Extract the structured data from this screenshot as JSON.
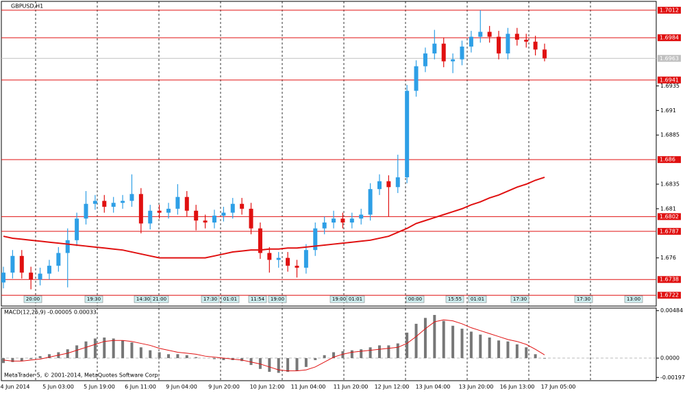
{
  "chart_data": {
    "type": "candlestick",
    "title": "GBPUSD,H1",
    "footer": "MetaTrader 5, © 2001-2014, MetaQuotes Software Corp.",
    "bull_color": "#2e9fe6",
    "bear_color": "#e01010",
    "ma_color": "#e01010",
    "level_color": "#e01010",
    "ylim": [
      1.6711,
      1.7021
    ],
    "yticks": [
      1.6935,
      1.691,
      1.6885,
      1.6835,
      1.681,
      1.676
    ],
    "levels": [
      1.7012,
      1.6984,
      1.6941,
      1.686,
      1.6802,
      1.6787,
      1.6738,
      1.6722
    ],
    "current_price": 1.6963,
    "xlabels": [
      "4 Jun 2014",
      "5 Jun 03:00",
      "5 Jun 19:00",
      "6 Jun 11:00",
      "9 Jun 04:00",
      "9 Jun 20:00",
      "10 Jun 12:00",
      "11 Jun 04:00",
      "11 Jun 20:00",
      "12 Jun 12:00",
      "13 Jun 04:00",
      "13 Jun 20:00",
      "16 Jun 13:00",
      "17 Jun 05:00"
    ],
    "events": [
      "20:00",
      "19:30",
      "14:30",
      "21:00",
      "17:30",
      "01:01",
      "11:54",
      "19:00",
      "19:00",
      "01:01",
      "00:00",
      "15:55",
      "01:01",
      "17:30",
      "17:30",
      "13:00"
    ],
    "open": [
      1.6735,
      1.6745,
      1.6762,
      1.6745,
      1.6738,
      1.6744,
      1.6752,
      1.6765,
      1.6778,
      1.68,
      1.6815,
      1.6818,
      1.6812,
      1.6816,
      1.6818,
      1.6825,
      1.6795,
      1.6808,
      1.6806,
      1.681,
      1.6822,
      1.6808,
      1.6798,
      1.6796,
      1.6803,
      1.6806,
      1.6815,
      1.681,
      1.679,
      1.6765,
      1.6758,
      1.676,
      1.6752,
      1.675,
      1.6768,
      1.679,
      1.6796,
      1.68,
      1.6796,
      1.68,
      1.6804,
      1.683,
      1.6838,
      1.6832,
      1.6842,
      1.693,
      1.6955,
      1.6968,
      1.6978,
      1.696,
      1.6962,
      1.6975,
      1.6985,
      1.699,
      1.6985,
      1.6968,
      1.6988,
      1.6982,
      1.698,
      1.6972
    ],
    "high": [
      1.6751,
      1.6768,
      1.6768,
      1.6751,
      1.675,
      1.6758,
      1.6771,
      1.679,
      1.6806,
      1.6828,
      1.6824,
      1.6824,
      1.6822,
      1.6824,
      1.6845,
      1.6831,
      1.6814,
      1.6814,
      1.6816,
      1.6835,
      1.6828,
      1.6814,
      1.6804,
      1.6809,
      1.6812,
      1.6821,
      1.6821,
      1.6816,
      1.6796,
      1.6771,
      1.6766,
      1.6766,
      1.6758,
      1.6774,
      1.6796,
      1.6802,
      1.6808,
      1.6806,
      1.6806,
      1.681,
      1.6836,
      1.6845,
      1.6844,
      1.6865,
      1.6936,
      1.6961,
      1.6974,
      1.6992,
      1.6984,
      1.6968,
      1.6981,
      1.6991,
      1.7012,
      1.6996,
      1.6991,
      1.6994,
      1.6994,
      1.6988,
      1.6986,
      1.6978
    ],
    "low": [
      1.6729,
      1.6739,
      1.6739,
      1.6728,
      1.6732,
      1.6738,
      1.6746,
      1.673,
      1.6772,
      1.6794,
      1.6809,
      1.6806,
      1.6806,
      1.681,
      1.6812,
      1.6785,
      1.6789,
      1.68,
      1.68,
      1.6804,
      1.6802,
      1.6788,
      1.679,
      1.679,
      1.6797,
      1.68,
      1.6804,
      1.6784,
      1.6759,
      1.6745,
      1.675,
      1.6746,
      1.674,
      1.6744,
      1.6762,
      1.6784,
      1.679,
      1.679,
      1.679,
      1.6794,
      1.6798,
      1.6824,
      1.6802,
      1.6826,
      1.6836,
      1.6924,
      1.6949,
      1.6962,
      1.6954,
      1.6948,
      1.6956,
      1.6969,
      1.6979,
      1.6979,
      1.6962,
      1.6962,
      1.6976,
      1.6974,
      1.6966,
      1.696
    ],
    "close": [
      1.6745,
      1.6762,
      1.6745,
      1.6738,
      1.6744,
      1.6752,
      1.6765,
      1.6778,
      1.68,
      1.6815,
      1.6818,
      1.6812,
      1.6816,
      1.6818,
      1.6825,
      1.6795,
      1.6808,
      1.6806,
      1.681,
      1.6822,
      1.6808,
      1.6798,
      1.6796,
      1.6803,
      1.6806,
      1.6815,
      1.681,
      1.679,
      1.6765,
      1.6758,
      1.676,
      1.6752,
      1.675,
      1.6768,
      1.679,
      1.6796,
      1.68,
      1.6796,
      1.68,
      1.6804,
      1.683,
      1.6838,
      1.6832,
      1.6842,
      1.693,
      1.6955,
      1.6968,
      1.6978,
      1.696,
      1.6962,
      1.6975,
      1.6985,
      1.699,
      1.6985,
      1.6968,
      1.6988,
      1.6982,
      1.698,
      1.6972,
      1.6963
    ],
    "ma": [
      1.6782,
      1.678,
      1.6779,
      1.6778,
      1.6777,
      1.6776,
      1.6775,
      1.6774,
      1.6773,
      1.6772,
      1.6771,
      1.677,
      1.6769,
      1.6768,
      1.6766,
      1.6764,
      1.6762,
      1.676,
      1.676,
      1.676,
      1.676,
      1.676,
      1.676,
      1.6762,
      1.6764,
      1.6766,
      1.6767,
      1.6768,
      1.6768,
      1.6769,
      1.6769,
      1.677,
      1.677,
      1.6771,
      1.6772,
      1.6773,
      1.6774,
      1.6775,
      1.6776,
      1.6777,
      1.6778,
      1.678,
      1.6782,
      1.6786,
      1.679,
      1.6795,
      1.6798,
      1.6801,
      1.6804,
      1.6807,
      1.681,
      1.6814,
      1.6817,
      1.6821,
      1.6824,
      1.6828,
      1.6832,
      1.6835,
      1.6839,
      1.6842
    ],
    "macd": {
      "title": "MACD(12,26,9) -0.00005 0.00033",
      "hist_color": "#777777",
      "signal_color": "#e01010",
      "ylim": [
        -0.0023,
        0.0051
      ],
      "yticks": [
        0.00484,
        {
          "value": 0,
          "label": "0.0000"
        },
        -0.00197
      ],
      "hist": [
        -0.0005,
        -0.0004,
        -0.0003,
        -0.0001,
        0.0002,
        0.0004,
        0.0006,
        0.0009,
        0.0013,
        0.0017,
        0.002,
        0.0021,
        0.002,
        0.0018,
        0.0016,
        0.0011,
        0.0008,
        0.0006,
        0.0004,
        0.0004,
        0.0003,
        0.0001,
        0,
        -0.0001,
        -0.0002,
        -0.0002,
        -0.0003,
        -0.0007,
        -0.0011,
        -0.0014,
        -0.0015,
        -0.0014,
        -0.0013,
        -0.0009,
        -0.0002,
        0.0003,
        0.0006,
        0.0007,
        0.0008,
        0.0009,
        0.0011,
        0.0013,
        0.0013,
        0.0015,
        0.0026,
        0.0035,
        0.0041,
        0.0044,
        0.0038,
        0.0033,
        0.003,
        0.0027,
        0.0024,
        0.0021,
        0.0018,
        0.0017,
        0.0014,
        0.0011,
        0.0004,
        -5e-05
      ],
      "signal": [
        -0.0002,
        -0.0003,
        -0.0003,
        -0.0002,
        -0.0001,
        0.0001,
        0.0003,
        0.0005,
        0.0008,
        0.0011,
        0.0014,
        0.0017,
        0.0018,
        0.0018,
        0.0017,
        0.0015,
        0.0013,
        0.001,
        0.0008,
        0.0006,
        0.0005,
        0.0004,
        0.0002,
        0.0001,
        0,
        -0.0001,
        -0.0002,
        -0.0004,
        -0.0006,
        -0.0009,
        -0.0012,
        -0.0013,
        -0.0013,
        -0.0012,
        -0.0009,
        -0.0004,
        0.0001,
        0.0004,
        0.0006,
        0.0007,
        0.0008,
        0.0009,
        0.001,
        0.0011,
        0.0015,
        0.0022,
        0.003,
        0.0037,
        0.0039,
        0.0038,
        0.0035,
        0.0031,
        0.0028,
        0.0025,
        0.0022,
        0.0019,
        0.0017,
        0.0014,
        0.0009,
        0.00033
      ]
    }
  }
}
